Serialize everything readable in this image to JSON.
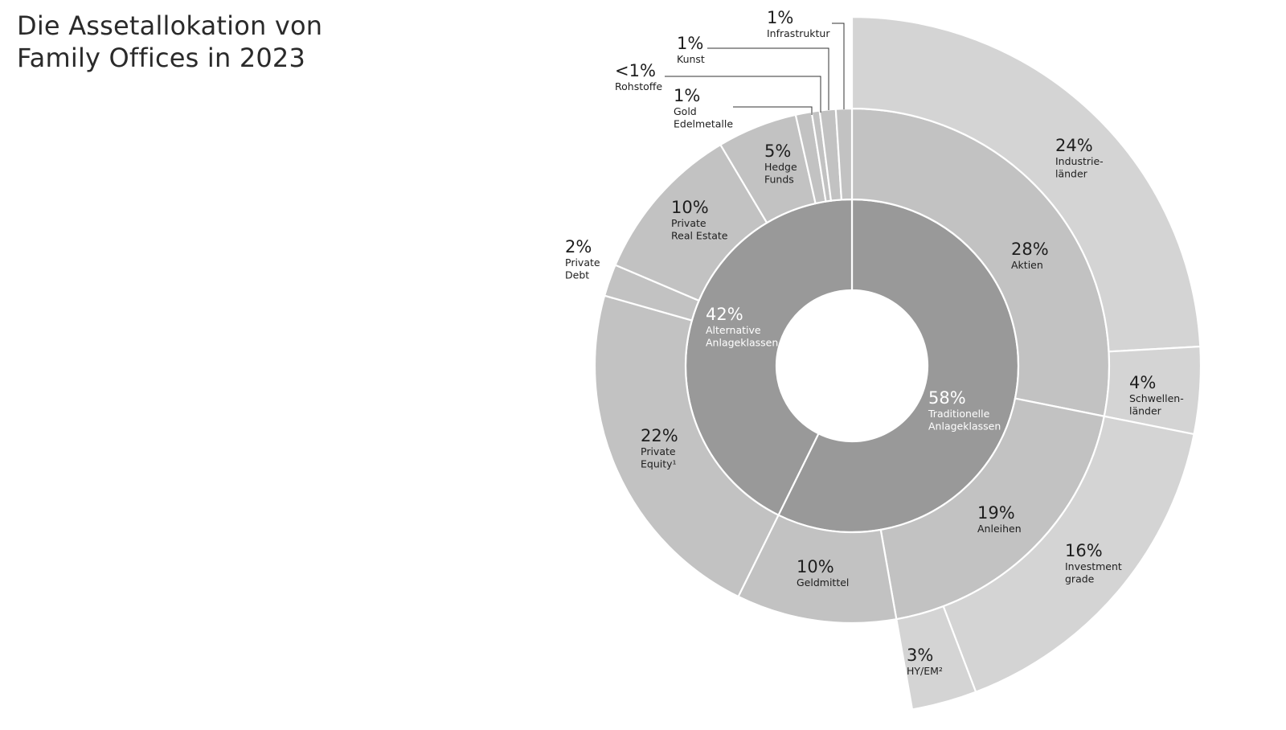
{
  "title": "Die Assetallokation von\nFamily Offices in 2023",
  "colors": {
    "inner": "#999999",
    "middle": "#c2c2c2",
    "outer": "#d4d4d4",
    "text_dark": "#1e1e1e",
    "text_light": "#ffffff"
  },
  "chart_data": {
    "type": "sunburst",
    "title": "Die Assetallokation von Family Offices in 2023",
    "inner_ring": [
      {
        "name": "Traditionelle Anlageklassen",
        "display": "58%",
        "value": 58,
        "label_lines": [
          "Traditionelle",
          "Anlageklassen"
        ]
      },
      {
        "name": "Alternative Anlageklassen",
        "display": "42%",
        "value": 42,
        "label_lines": [
          "Alternative",
          "Anlageklassen"
        ]
      }
    ],
    "middle_ring": [
      {
        "name": "Aktien",
        "display": "28%",
        "value": 28,
        "parent": "Traditionelle Anlageklassen",
        "label_lines": [
          "Aktien"
        ]
      },
      {
        "name": "Anleihen",
        "display": "19%",
        "value": 19,
        "parent": "Traditionelle Anlageklassen",
        "label_lines": [
          "Anleihen"
        ]
      },
      {
        "name": "Geldmittel",
        "display": "10%",
        "value": 10,
        "parent": "Traditionelle Anlageklassen",
        "label_lines": [
          "Geldmittel"
        ]
      },
      {
        "name": "Private Equity",
        "display": "22%",
        "value": 22,
        "parent": "Alternative Anlageklassen",
        "label_lines": [
          "Private",
          "Equity¹"
        ]
      },
      {
        "name": "Private Debt",
        "display": "2%",
        "value": 2,
        "parent": "Alternative Anlageklassen",
        "label_lines": [
          "Private",
          "Debt"
        ]
      },
      {
        "name": "Private Real Estate",
        "display": "10%",
        "value": 10,
        "parent": "Alternative Anlageklassen",
        "label_lines": [
          "Private",
          "Real Estate"
        ]
      },
      {
        "name": "Hedge Funds",
        "display": "5%",
        "value": 5,
        "parent": "Alternative Anlageklassen",
        "label_lines": [
          "Hedge",
          "Funds"
        ]
      },
      {
        "name": "Gold Edelmetalle",
        "display": "1%",
        "value": 1,
        "parent": "Alternative Anlageklassen",
        "label_lines": [
          "Gold",
          "Edelmetalle"
        ]
      },
      {
        "name": "Rohstoffe",
        "display": "<1%",
        "value": 0.5,
        "parent": "Alternative Anlageklassen",
        "label_lines": [
          "Rohstoffe"
        ]
      },
      {
        "name": "Kunst",
        "display": "1%",
        "value": 1,
        "parent": "Alternative Anlageklassen",
        "label_lines": [
          "Kunst"
        ]
      },
      {
        "name": "Infrastruktur",
        "display": "1%",
        "value": 1,
        "parent": "Alternative Anlageklassen",
        "label_lines": [
          "Infrastruktur"
        ]
      }
    ],
    "outer_ring": [
      {
        "name": "Industrieländer",
        "display": "24%",
        "value": 24,
        "parent": "Aktien",
        "label_lines": [
          "Industrie-",
          "länder"
        ]
      },
      {
        "name": "Schwellenländer",
        "display": "4%",
        "value": 4,
        "parent": "Aktien",
        "label_lines": [
          "Schwellen-",
          "länder"
        ]
      },
      {
        "name": "Investment grade",
        "display": "16%",
        "value": 16,
        "parent": "Anleihen",
        "label_lines": [
          "Investment",
          "grade"
        ]
      },
      {
        "name": "HY/EM",
        "display": "3%",
        "value": 3,
        "parent": "Anleihen",
        "label_lines": [
          "HY/EM²"
        ]
      }
    ]
  }
}
